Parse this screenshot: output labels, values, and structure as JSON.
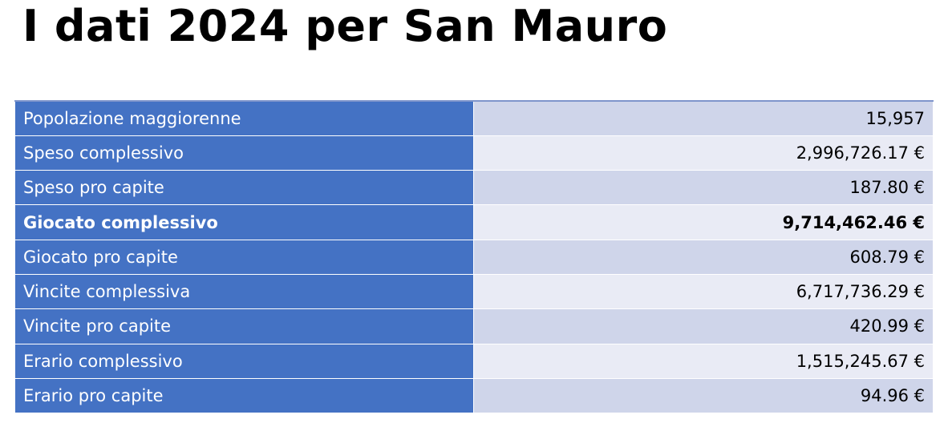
{
  "title": "I dati 2024 per San Mauro",
  "table": {
    "rows": [
      {
        "label": "Popolazione maggiorenne",
        "value": "15,957"
      },
      {
        "label": "Speso complessivo",
        "value": "2,996,726.17 €"
      },
      {
        "label": "Speso pro capite",
        "value": "187.80 €"
      },
      {
        "label": "Giocato complessivo",
        "value": "9,714,462.46 €",
        "bold": true
      },
      {
        "label": "Giocato pro capite",
        "value": "608.79 €"
      },
      {
        "label": "Vincite complessiva",
        "value": "6,717,736.29 €"
      },
      {
        "label": "Vincite pro capite",
        "value": "420.99 €"
      },
      {
        "label": "Erario complessivo",
        "value": "1,515,245.67 €"
      },
      {
        "label": "Erario pro capite",
        "value": "94.96 €"
      }
    ]
  }
}
